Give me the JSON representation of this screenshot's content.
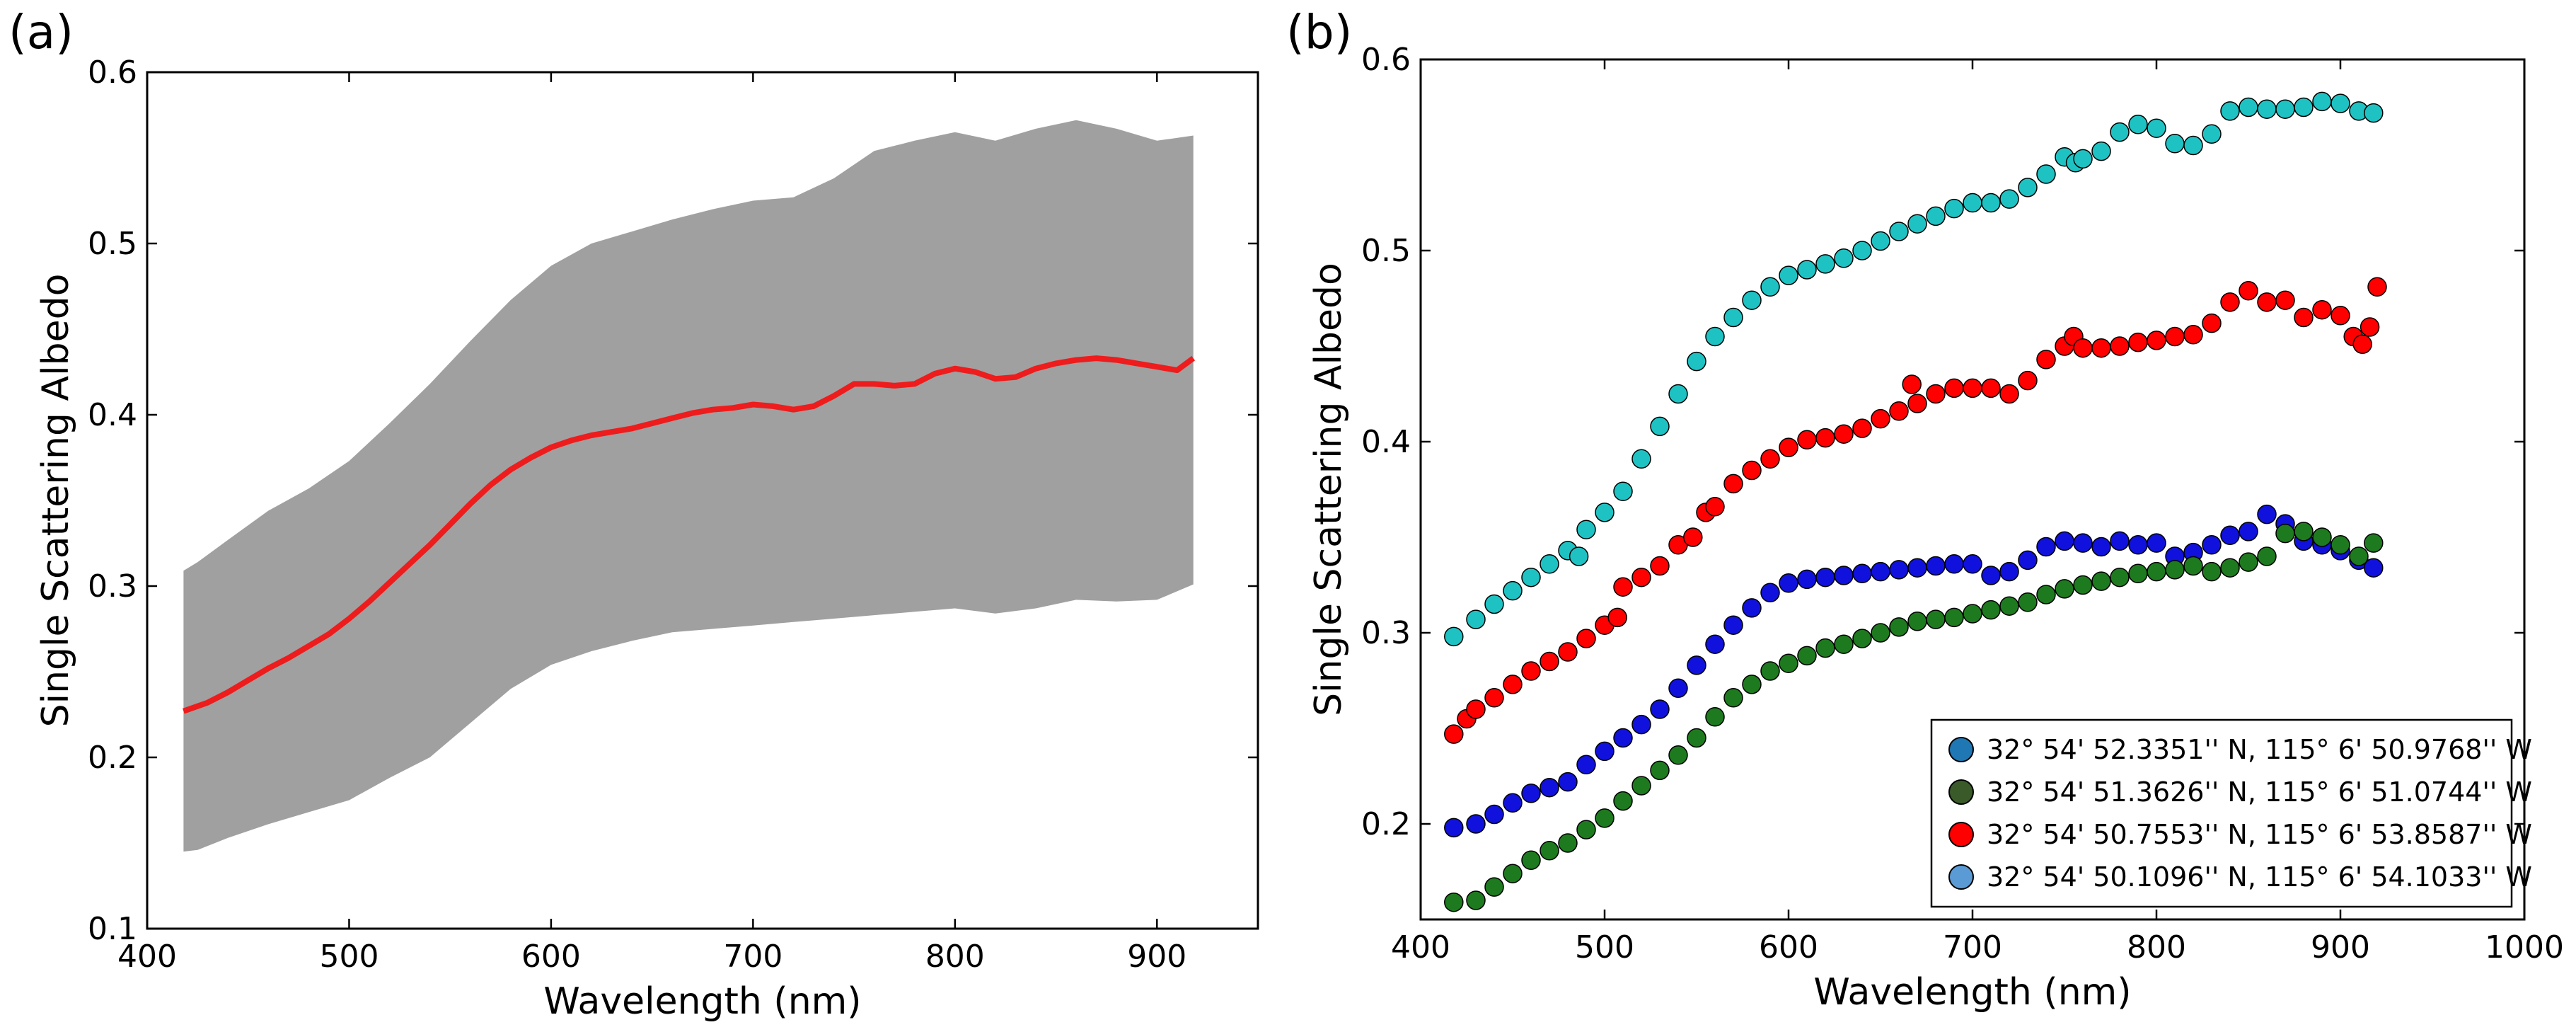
{
  "figure": {
    "panel_a_label": "(a)",
    "panel_b_label": "(b)"
  },
  "chart_data": [
    {
      "type": "area",
      "panel": "(a)",
      "title": "",
      "xlabel": "Wavelength (nm)",
      "ylabel": "Single Scattering Albedo",
      "xlim": [
        400,
        950
      ],
      "ylim": [
        0.1,
        0.6
      ],
      "xticks": [
        "400",
        "500",
        "600",
        "700",
        "800",
        "900"
      ],
      "xtick_values": [
        400,
        500,
        600,
        700,
        800,
        900
      ],
      "yticks": [
        "0.1",
        "0.2",
        "0.3",
        "0.4",
        "0.5",
        "0.6"
      ],
      "ytick_values": [
        0.1,
        0.2,
        0.3,
        0.4,
        0.5,
        0.6
      ],
      "grid": false,
      "colors": {
        "band": "#a0a0a0",
        "mean": "#ee1c1c"
      },
      "band": {
        "x": [
          418,
          425,
          440,
          460,
          480,
          500,
          520,
          540,
          560,
          580,
          600,
          620,
          640,
          660,
          680,
          700,
          720,
          740,
          760,
          780,
          800,
          820,
          840,
          860,
          880,
          900,
          918
        ],
        "upper": [
          0.309,
          0.314,
          0.327,
          0.344,
          0.357,
          0.373,
          0.395,
          0.418,
          0.443,
          0.467,
          0.487,
          0.5,
          0.507,
          0.514,
          0.52,
          0.525,
          0.527,
          0.538,
          0.554,
          0.56,
          0.565,
          0.56,
          0.567,
          0.572,
          0.567,
          0.56,
          0.563
        ],
        "lower": [
          0.145,
          0.146,
          0.153,
          0.161,
          0.168,
          0.175,
          0.188,
          0.2,
          0.22,
          0.24,
          0.254,
          0.262,
          0.268,
          0.273,
          0.275,
          0.277,
          0.279,
          0.281,
          0.283,
          0.285,
          0.287,
          0.284,
          0.287,
          0.292,
          0.291,
          0.292,
          0.301
        ]
      },
      "mean_line": {
        "x": [
          418,
          430,
          440,
          450,
          460,
          470,
          480,
          490,
          500,
          510,
          520,
          530,
          540,
          550,
          560,
          570,
          580,
          590,
          600,
          610,
          620,
          630,
          640,
          650,
          660,
          670,
          680,
          690,
          700,
          710,
          720,
          730,
          740,
          750,
          760,
          770,
          780,
          790,
          800,
          810,
          820,
          830,
          840,
          850,
          860,
          870,
          880,
          890,
          900,
          910,
          918
        ],
        "y": [
          0.227,
          0.232,
          0.238,
          0.245,
          0.252,
          0.258,
          0.265,
          0.272,
          0.281,
          0.291,
          0.302,
          0.313,
          0.324,
          0.336,
          0.348,
          0.359,
          0.368,
          0.375,
          0.381,
          0.385,
          0.388,
          0.39,
          0.392,
          0.395,
          0.398,
          0.401,
          0.403,
          0.404,
          0.406,
          0.405,
          0.403,
          0.405,
          0.411,
          0.418,
          0.418,
          0.417,
          0.418,
          0.424,
          0.427,
          0.425,
          0.421,
          0.422,
          0.427,
          0.43,
          0.432,
          0.433,
          0.432,
          0.43,
          0.428,
          0.426,
          0.433
        ]
      }
    },
    {
      "type": "scatter",
      "panel": "(b)",
      "title": "",
      "xlabel": "Wavelength (nm)",
      "ylabel": "Single Scattering Albedo",
      "xlim": [
        400,
        1000
      ],
      "ylim": [
        0.15,
        0.6
      ],
      "xticks": [
        "400",
        "500",
        "600",
        "700",
        "800",
        "900",
        "1000"
      ],
      "xtick_values": [
        400,
        500,
        600,
        700,
        800,
        900,
        1000
      ],
      "yticks": [
        "0.2",
        "0.3",
        "0.4",
        "0.5",
        "0.6"
      ],
      "ytick_values": [
        0.2,
        0.3,
        0.4,
        0.5,
        0.6
      ],
      "grid": false,
      "legend_position": "lower-right",
      "legend": [
        {
          "label": "32° 54' 52.3351'' N, 115° 6' 50.9768'' W",
          "color": "#1f77b4"
        },
        {
          "label": "32° 54' 51.3626'' N, 115° 6' 51.0744'' W",
          "color": "#3a5a2a"
        },
        {
          "label": "32° 54' 50.7553'' N, 115° 6' 53.8587'' W",
          "color": "#ff0000"
        },
        {
          "label": "32° 54' 50.1096'' N, 115° 6' 54.1033'' W",
          "color": "#5b9bd5"
        }
      ],
      "series": [
        {
          "name": "cyan",
          "color": "#1fc2c2",
          "x": [
            418,
            430,
            440,
            450,
            460,
            470,
            480,
            486,
            490,
            500,
            510,
            520,
            530,
            540,
            550,
            560,
            570,
            580,
            590,
            600,
            610,
            620,
            630,
            640,
            650,
            660,
            670,
            680,
            690,
            700,
            710,
            720,
            730,
            740,
            750,
            756,
            760,
            770,
            780,
            790,
            800,
            810,
            820,
            830,
            840,
            850,
            860,
            870,
            880,
            890,
            900,
            910,
            918
          ],
          "y": [
            0.298,
            0.307,
            0.315,
            0.322,
            0.329,
            0.336,
            0.343,
            0.34,
            0.354,
            0.363,
            0.374,
            0.391,
            0.408,
            0.425,
            0.442,
            0.455,
            0.465,
            0.474,
            0.481,
            0.487,
            0.49,
            0.493,
            0.496,
            0.5,
            0.505,
            0.51,
            0.514,
            0.518,
            0.522,
            0.525,
            0.525,
            0.527,
            0.533,
            0.54,
            0.549,
            0.546,
            0.548,
            0.552,
            0.562,
            0.566,
            0.564,
            0.556,
            0.555,
            0.561,
            0.573,
            0.575,
            0.574,
            0.574,
            0.575,
            0.578,
            0.577,
            0.573,
            0.572
          ]
        },
        {
          "name": "red",
          "color": "#ff0000",
          "x": [
            418,
            425,
            430,
            440,
            450,
            460,
            470,
            480,
            490,
            500,
            507,
            510,
            520,
            530,
            540,
            548,
            555,
            560,
            570,
            580,
            590,
            600,
            610,
            620,
            630,
            640,
            650,
            660,
            667,
            670,
            680,
            690,
            700,
            710,
            720,
            730,
            740,
            750,
            755,
            760,
            770,
            780,
            790,
            800,
            810,
            820,
            830,
            840,
            850,
            860,
            870,
            880,
            890,
            900,
            907,
            912,
            916,
            920
          ],
          "y": [
            0.247,
            0.255,
            0.26,
            0.266,
            0.273,
            0.28,
            0.285,
            0.29,
            0.297,
            0.304,
            0.308,
            0.324,
            0.329,
            0.335,
            0.346,
            0.35,
            0.363,
            0.366,
            0.378,
            0.385,
            0.391,
            0.397,
            0.401,
            0.402,
            0.404,
            0.407,
            0.412,
            0.416,
            0.43,
            0.42,
            0.425,
            0.428,
            0.428,
            0.428,
            0.425,
            0.432,
            0.443,
            0.45,
            0.455,
            0.449,
            0.449,
            0.45,
            0.452,
            0.453,
            0.455,
            0.456,
            0.462,
            0.473,
            0.479,
            0.473,
            0.474,
            0.465,
            0.469,
            0.466,
            0.455,
            0.451,
            0.46,
            0.481
          ]
        },
        {
          "name": "blue",
          "color": "#1111dd",
          "x": [
            418,
            430,
            440,
            450,
            460,
            470,
            480,
            490,
            500,
            510,
            520,
            530,
            540,
            550,
            560,
            570,
            580,
            590,
            600,
            610,
            620,
            630,
            640,
            650,
            660,
            670,
            680,
            690,
            700,
            710,
            720,
            730,
            740,
            750,
            760,
            770,
            780,
            790,
            800,
            810,
            820,
            830,
            840,
            850,
            860,
            870,
            880,
            890,
            900,
            910,
            918
          ],
          "y": [
            0.198,
            0.2,
            0.205,
            0.211,
            0.216,
            0.219,
            0.222,
            0.231,
            0.238,
            0.245,
            0.252,
            0.26,
            0.271,
            0.283,
            0.294,
            0.304,
            0.313,
            0.321,
            0.326,
            0.328,
            0.329,
            0.33,
            0.331,
            0.332,
            0.333,
            0.334,
            0.335,
            0.336,
            0.336,
            0.33,
            0.332,
            0.338,
            0.345,
            0.348,
            0.347,
            0.345,
            0.348,
            0.346,
            0.347,
            0.34,
            0.342,
            0.346,
            0.351,
            0.353,
            0.362,
            0.357,
            0.348,
            0.346,
            0.343,
            0.338,
            0.334
          ]
        },
        {
          "name": "green",
          "color": "#1e7a1e",
          "x": [
            418,
            430,
            440,
            450,
            460,
            470,
            480,
            490,
            500,
            510,
            520,
            530,
            540,
            550,
            560,
            570,
            580,
            590,
            600,
            610,
            620,
            630,
            640,
            650,
            660,
            670,
            680,
            690,
            700,
            710,
            720,
            730,
            740,
            750,
            760,
            770,
            780,
            790,
            800,
            810,
            820,
            830,
            840,
            850,
            860,
            870,
            880,
            890,
            900,
            910,
            918
          ],
          "y": [
            0.159,
            0.16,
            0.167,
            0.174,
            0.181,
            0.186,
            0.19,
            0.197,
            0.203,
            0.212,
            0.22,
            0.228,
            0.236,
            0.245,
            0.256,
            0.266,
            0.273,
            0.28,
            0.284,
            0.288,
            0.292,
            0.294,
            0.297,
            0.3,
            0.303,
            0.306,
            0.307,
            0.308,
            0.31,
            0.312,
            0.314,
            0.316,
            0.32,
            0.323,
            0.325,
            0.327,
            0.329,
            0.331,
            0.332,
            0.333,
            0.335,
            0.332,
            0.334,
            0.337,
            0.34,
            0.352,
            0.353,
            0.35,
            0.346,
            0.34,
            0.347
          ]
        }
      ]
    }
  ]
}
